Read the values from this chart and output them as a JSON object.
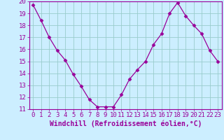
{
  "x": [
    0,
    1,
    2,
    3,
    4,
    5,
    6,
    7,
    8,
    9,
    10,
    11,
    12,
    13,
    14,
    15,
    16,
    17,
    18,
    19,
    20,
    21,
    22,
    23
  ],
  "y": [
    19.7,
    18.4,
    17.0,
    15.9,
    15.1,
    13.9,
    12.9,
    11.8,
    11.2,
    11.2,
    11.2,
    12.2,
    13.5,
    14.3,
    15.0,
    16.4,
    17.3,
    19.0,
    19.9,
    18.8,
    18.0,
    17.3,
    15.9,
    15.0
  ],
  "line_color": "#990099",
  "marker": "D",
  "marker_size": 2.5,
  "bg_color": "#cceeff",
  "grid_color": "#99cccc",
  "xlabel": "Windchill (Refroidissement éolien,°C)",
  "xlabel_color": "#990099",
  "xlabel_fontsize": 7,
  "tick_color": "#990099",
  "tick_fontsize": 6.5,
  "ylim": [
    11,
    20
  ],
  "yticks": [
    11,
    12,
    13,
    14,
    15,
    16,
    17,
    18,
    19,
    20
  ],
  "xticks": [
    0,
    1,
    2,
    3,
    4,
    5,
    6,
    7,
    8,
    9,
    10,
    11,
    12,
    13,
    14,
    15,
    16,
    17,
    18,
    19,
    20,
    21,
    22,
    23
  ],
  "xtick_labels": [
    "0",
    "1",
    "2",
    "3",
    "4",
    "5",
    "6",
    "7",
    "8",
    "9",
    "10",
    "11",
    "12",
    "13",
    "14",
    "15",
    "16",
    "17",
    "18",
    "19",
    "20",
    "21",
    "22",
    "23"
  ]
}
